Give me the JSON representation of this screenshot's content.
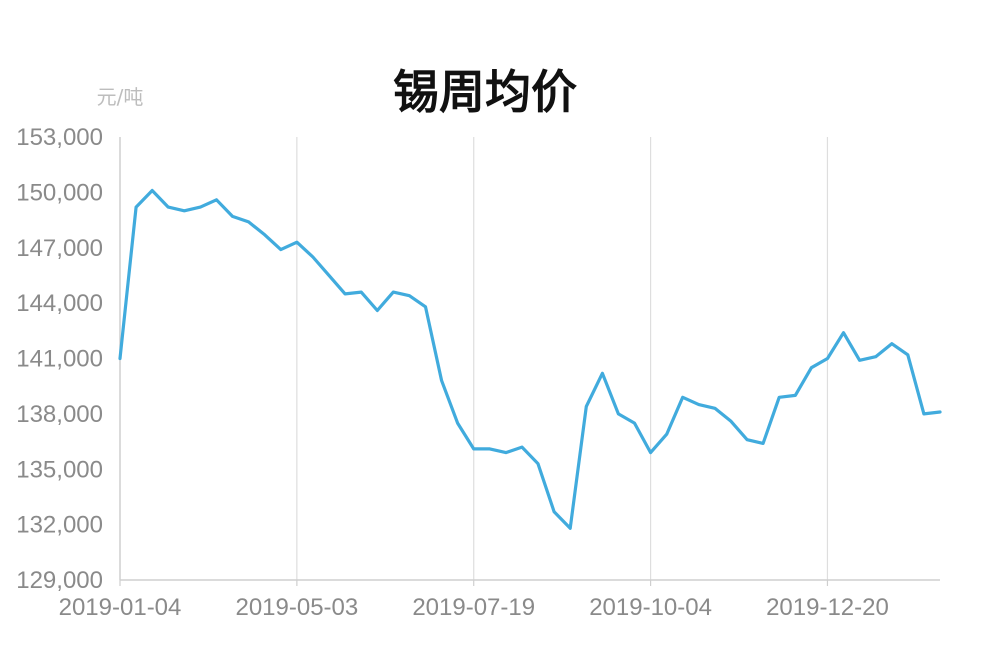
{
  "chart_data": {
    "type": "line",
    "title": "锡周均价",
    "unit": "元/吨",
    "xlabel": "",
    "ylabel": "",
    "ylim": [
      129000,
      153000
    ],
    "yticks": [
      129000,
      132000,
      135000,
      138000,
      141000,
      144000,
      147000,
      150000,
      153000
    ],
    "ytick_labels": [
      "129,000",
      "132,000",
      "135,000",
      "138,000",
      "141,000",
      "144,000",
      "147,000",
      "150,000",
      "153,000"
    ],
    "xtick_labels": [
      "2019-01-04",
      "2019-05-03",
      "2019-07-19",
      "2019-10-04",
      "2019-12-20"
    ],
    "xtick_indices": [
      0,
      11,
      22,
      33,
      44
    ],
    "grid": "vertical",
    "line_color": "#41abdd",
    "series": [
      {
        "values": [
          141000,
          149200,
          150100,
          149200,
          149000,
          149200,
          149600,
          148700,
          148400,
          147700,
          146900,
          147300,
          146500,
          145500,
          144500,
          144600,
          143600,
          144600,
          144400,
          143800,
          139800,
          137500,
          136100,
          136100,
          135900,
          136200,
          135300,
          132700,
          131800,
          138400,
          140200,
          138000,
          137500,
          135900,
          136900,
          138900,
          138500,
          138300,
          137600,
          136600,
          136400,
          138900,
          139000,
          140500,
          141000,
          142400,
          140900,
          141100,
          141800,
          141200,
          138000,
          138100
        ]
      }
    ]
  }
}
